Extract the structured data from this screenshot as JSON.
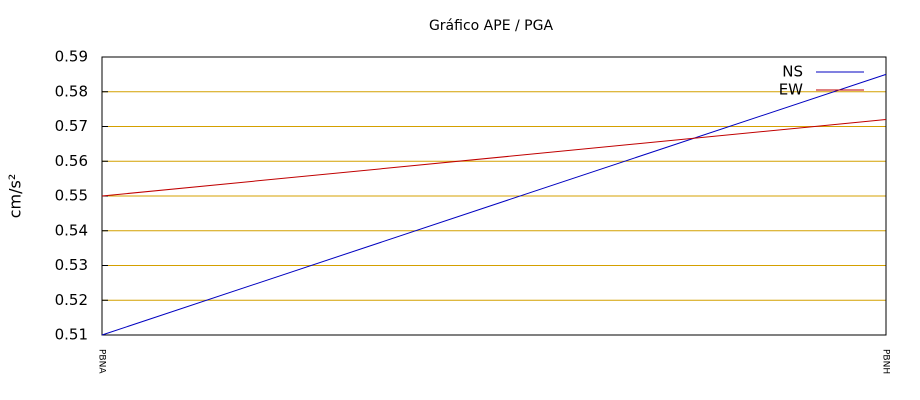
{
  "chart_data": {
    "type": "line",
    "title": "Gráfico  APE / PGA",
    "y_label": "cm/s²",
    "categories": [
      "PBNA",
      "PBNH"
    ],
    "series": [
      {
        "name": "NS",
        "color": "#0000c0",
        "values": [
          0.51,
          0.585
        ]
      },
      {
        "name": "EW",
        "color": "#c00000",
        "values": [
          0.55,
          0.572
        ]
      }
    ],
    "ylim": [
      0.51,
      0.59
    ],
    "yticks": [
      0.51,
      0.52,
      0.53,
      0.54,
      0.55,
      0.56,
      0.57,
      0.58,
      0.59
    ],
    "grid": true,
    "grid_color": "#d4a000",
    "legend": "upper right"
  }
}
